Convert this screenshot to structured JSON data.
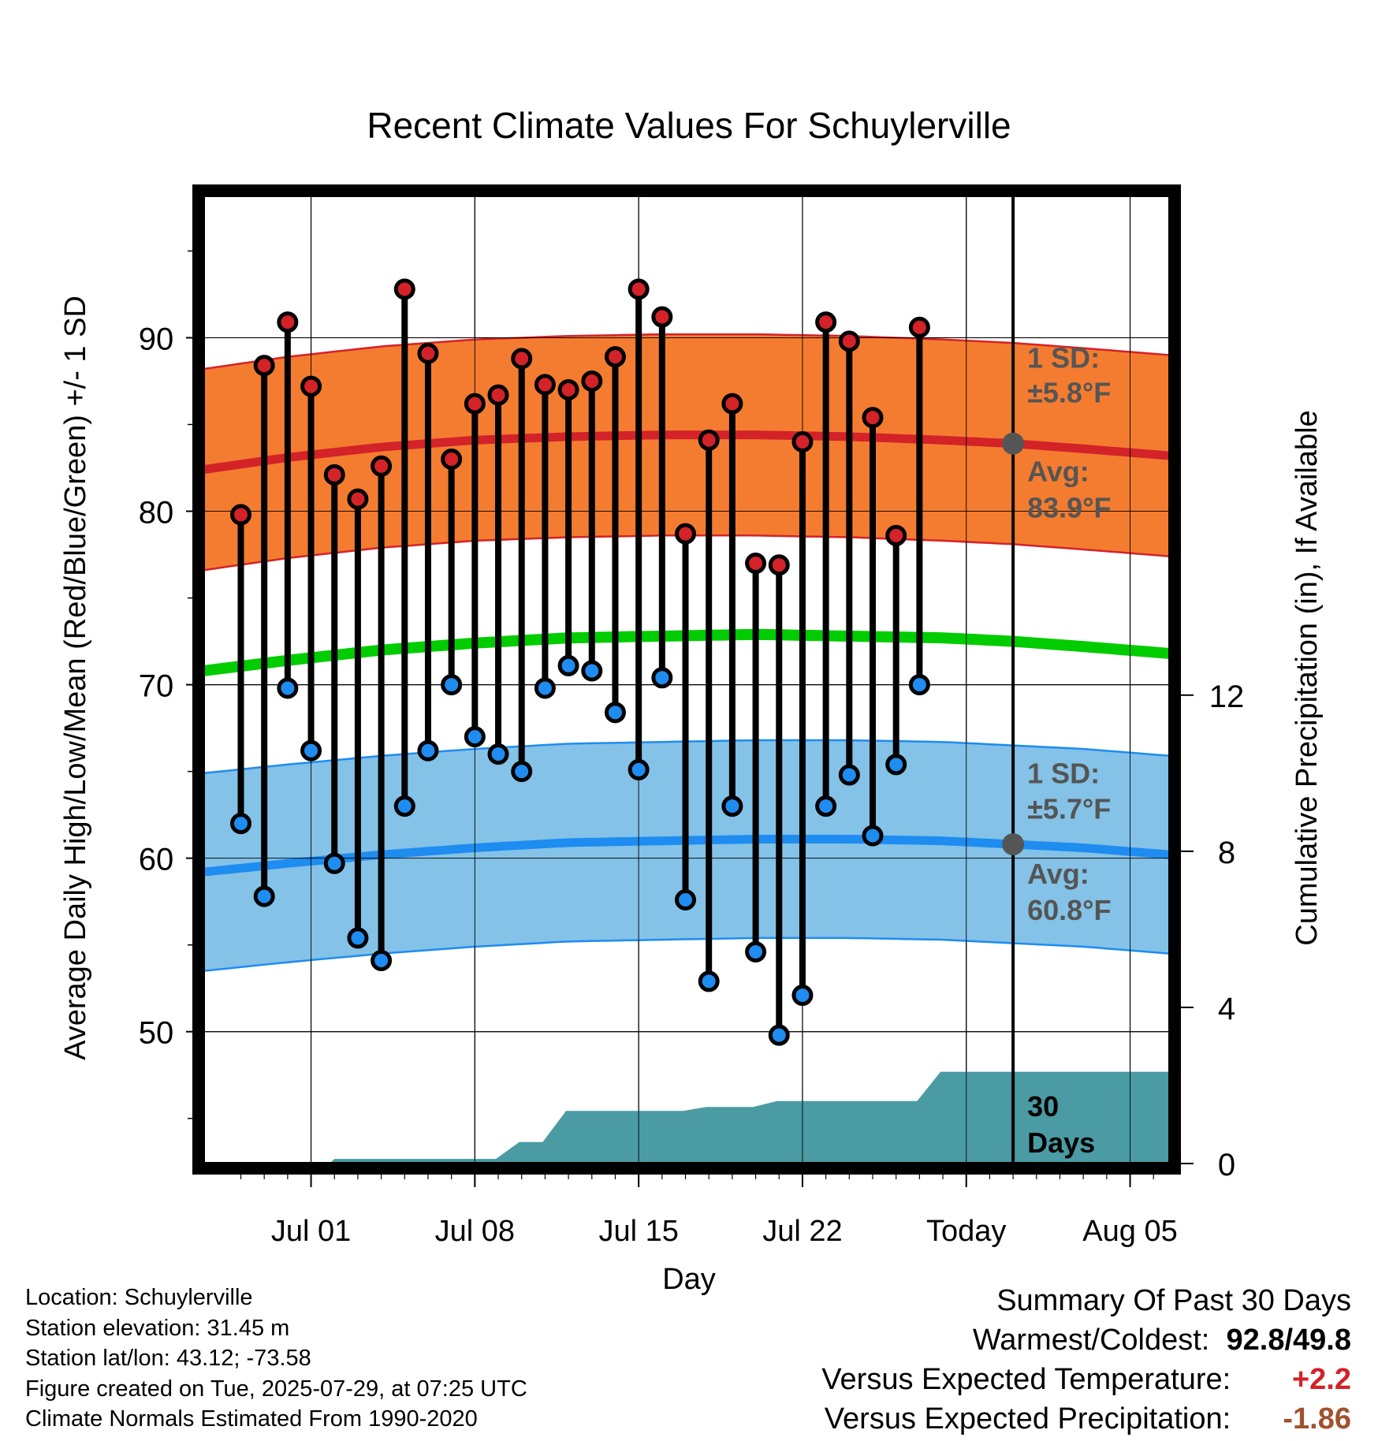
{
  "chart_data": {
    "type": "line",
    "title": "Recent Climate Values For Schuylerville",
    "xlabel": "Day",
    "ylabel_left": "Average Daily High/Low/Mean (Red/Blue/Green) +/- 1 SD",
    "ylabel_right": "Cumulative Precipitation (in), If Available",
    "x_ticks": [
      "Jul 01",
      "Jul 08",
      "Jul 15",
      "Jul 22",
      "Today",
      "Aug 05"
    ],
    "y_ticks_left": [
      "50",
      "60",
      "70",
      "80",
      "90"
    ],
    "y_ticks_right": [
      "0",
      "4",
      "8",
      "12"
    ],
    "ylim_left": [
      42.4,
      98.2
    ],
    "ylim_right": [
      0,
      24.8
    ],
    "xlim_days": [
      -3.6,
      37.7
    ],
    "today_day": 31,
    "grid": true,
    "days": [
      -2,
      -1,
      0,
      1,
      2,
      3,
      4,
      5,
      6,
      7,
      8,
      9,
      10,
      11,
      12,
      13,
      14,
      15,
      16,
      17,
      18,
      19,
      20,
      21,
      22,
      23,
      24,
      25,
      26,
      27
    ],
    "highs": [
      79.8,
      88.4,
      90.9,
      87.2,
      82.1,
      80.7,
      82.6,
      92.8,
      89.1,
      83.0,
      86.2,
      86.7,
      88.8,
      87.3,
      87.0,
      87.5,
      88.9,
      92.8,
      91.2,
      78.7,
      84.1,
      86.2,
      77.0,
      76.9,
      84.0,
      90.9,
      89.8,
      85.4,
      78.6,
      90.6
    ],
    "lows": [
      62.0,
      57.8,
      69.8,
      66.2,
      59.7,
      55.4,
      54.1,
      63.0,
      66.2,
      70.0,
      67.0,
      66.0,
      65.0,
      69.8,
      71.1,
      70.8,
      68.4,
      65.1,
      70.4,
      57.6,
      52.9,
      63.0,
      54.6,
      49.8,
      52.1,
      63.0,
      64.8,
      61.3,
      65.4,
      70.0
    ],
    "normal_days": [
      -3.6,
      0,
      4,
      8,
      12,
      16,
      20,
      24,
      28,
      31,
      34,
      37.7
    ],
    "normal_high": [
      82.4,
      83.1,
      83.7,
      84.1,
      84.3,
      84.4,
      84.4,
      84.3,
      84.1,
      83.9,
      83.6,
      83.2
    ],
    "normal_high_sd": 5.8,
    "normal_low": [
      59.2,
      59.7,
      60.2,
      60.6,
      60.9,
      61.0,
      61.1,
      61.1,
      61.0,
      60.8,
      60.6,
      60.2
    ],
    "normal_low_sd": 5.7,
    "normal_mean": [
      70.8,
      71.4,
      72.0,
      72.4,
      72.7,
      72.8,
      72.9,
      72.8,
      72.7,
      72.5,
      72.2,
      71.8
    ],
    "precip_steps": [
      [
        -3.6,
        0
      ],
      [
        1.8,
        0
      ],
      [
        2.0,
        0.12
      ],
      [
        8.9,
        0.12
      ],
      [
        9.9,
        0.55
      ],
      [
        10.9,
        0.55
      ],
      [
        11.9,
        1.35
      ],
      [
        16.9,
        1.35
      ],
      [
        17.9,
        1.45
      ],
      [
        19.9,
        1.45
      ],
      [
        20.9,
        1.6
      ],
      [
        26.9,
        1.6
      ],
      [
        27.9,
        2.35
      ],
      [
        37.7,
        2.35
      ]
    ],
    "annotations": {
      "high_sd_label": "1 SD:",
      "high_sd_value": "±5.8°F",
      "high_avg_label": "Avg:",
      "high_avg_value": "83.9°F",
      "low_sd_label": "1 SD:",
      "low_sd_value": "±5.7°F",
      "low_avg_label": "Avg:",
      "low_avg_value": "60.8°F",
      "precip_label_1": "30",
      "precip_label_2": "Days"
    },
    "colors": {
      "high_band": "#f47c30",
      "high_line": "#d32228",
      "low_band": "#84c2e7",
      "low_line": "#1e8cf0",
      "mean_line": "#00cc00",
      "precip": "#4a9ba3",
      "high_dot": "#d32228",
      "low_dot": "#1e8cf0",
      "annotation": "#555555",
      "avg_dot": "#555555"
    }
  },
  "info": {
    "location": "Location: Schuylerville",
    "elevation": "Station elevation: 31.45 m",
    "latlon": "Station lat/lon: 43.12; -73.58",
    "created": "Figure created on Tue, 2025-07-29, at 07:25 UTC",
    "normals": "Climate Normals Estimated From 1990-2020"
  },
  "summary": {
    "heading": "Summary Of Past 30 Days",
    "warm_cold_label": "Warmest/Coldest:",
    "warmest": "92.8",
    "slash": "/",
    "coldest": "49.8",
    "temp_label": "Versus Expected Temperature:",
    "temp_value": "+2.2",
    "temp_color": "#d32228",
    "precip_label": "Versus Expected Precipitation:",
    "precip_value": "-1.86",
    "precip_color": "#a0522d"
  }
}
